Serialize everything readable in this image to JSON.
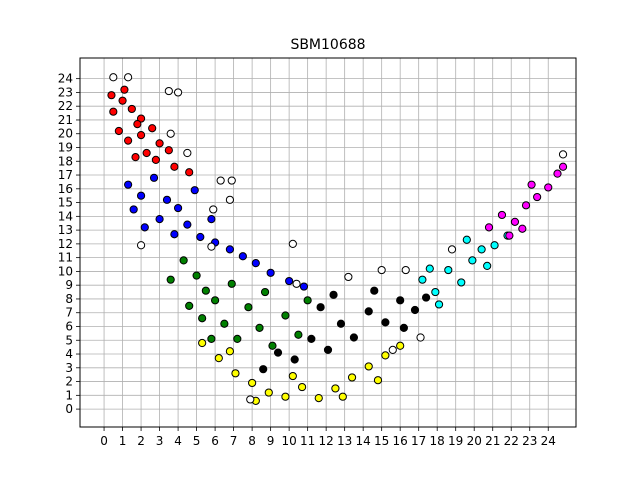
{
  "chart_data": {
    "type": "scatter",
    "title": "SBM10688",
    "xlabel": "",
    "ylabel": "",
    "xlim": [
      -1.3,
      25.5
    ],
    "ylim": [
      -1.3,
      25.5
    ],
    "x_ticks": [
      0,
      1,
      2,
      3,
      4,
      5,
      6,
      7,
      8,
      9,
      10,
      11,
      12,
      13,
      14,
      15,
      16,
      17,
      18,
      19,
      20,
      21,
      22,
      23,
      24
    ],
    "y_ticks": [
      0,
      1,
      2,
      3,
      4,
      5,
      6,
      7,
      8,
      9,
      10,
      11,
      12,
      13,
      14,
      15,
      16,
      17,
      18,
      19,
      20,
      21,
      22,
      23,
      24
    ],
    "grid": true,
    "point_edge_color": "#000000",
    "series": [
      {
        "color": "#ff0000",
        "points": [
          [
            0.5,
            21.6
          ],
          [
            1,
            22.4
          ],
          [
            1.5,
            21.8
          ],
          [
            2,
            21.1
          ],
          [
            0.8,
            20.2
          ],
          [
            1.3,
            19.5
          ],
          [
            2,
            19.9
          ],
          [
            2.6,
            20.4
          ],
          [
            3,
            19.3
          ],
          [
            2.3,
            18.6
          ],
          [
            1.7,
            18.3
          ],
          [
            3.5,
            18.8
          ],
          [
            1.1,
            23.2
          ],
          [
            0.4,
            22.8
          ],
          [
            1.8,
            20.7
          ],
          [
            2.8,
            18.1
          ],
          [
            3.8,
            17.6
          ],
          [
            4.6,
            17.2
          ]
        ]
      },
      {
        "color": "#0000ff",
        "points": [
          [
            1.3,
            16.3
          ],
          [
            2,
            15.5
          ],
          [
            2.7,
            16.8
          ],
          [
            3.4,
            15.2
          ],
          [
            4,
            14.6
          ],
          [
            3,
            13.8
          ],
          [
            2.2,
            13.2
          ],
          [
            3.8,
            12.7
          ],
          [
            4.5,
            13.4
          ],
          [
            5.2,
            12.5
          ],
          [
            6,
            12.1
          ],
          [
            6.8,
            11.6
          ],
          [
            7.5,
            11.1
          ],
          [
            8.2,
            10.6
          ],
          [
            9,
            9.9
          ],
          [
            10,
            9.3
          ],
          [
            10.8,
            8.9
          ],
          [
            1.6,
            14.5
          ],
          [
            4.9,
            15.9
          ],
          [
            5.8,
            13.8
          ]
        ]
      },
      {
        "color": "#008000",
        "points": [
          [
            4.3,
            10.8
          ],
          [
            5,
            9.7
          ],
          [
            5.5,
            8.6
          ],
          [
            4.6,
            7.5
          ],
          [
            5.3,
            6.6
          ],
          [
            6,
            7.9
          ],
          [
            6.5,
            6.2
          ],
          [
            7.2,
            5.1
          ],
          [
            6.9,
            9.1
          ],
          [
            7.8,
            7.4
          ],
          [
            8.4,
            5.9
          ],
          [
            9.1,
            4.6
          ],
          [
            9.8,
            6.8
          ],
          [
            10.5,
            5.4
          ],
          [
            11,
            7.9
          ],
          [
            3.6,
            9.4
          ],
          [
            5.8,
            5.1
          ],
          [
            8.7,
            8.5
          ]
        ]
      },
      {
        "color": "#000000",
        "points": [
          [
            8.6,
            2.9
          ],
          [
            9.4,
            4.1
          ],
          [
            10.3,
            3.6
          ],
          [
            11.2,
            5.1
          ],
          [
            12.1,
            4.3
          ],
          [
            12.8,
            6.2
          ],
          [
            13.5,
            5.2
          ],
          [
            14.3,
            7.1
          ],
          [
            15.2,
            6.3
          ],
          [
            16,
            7.9
          ],
          [
            16.8,
            7.2
          ],
          [
            17.4,
            8.1
          ],
          [
            12.4,
            8.3
          ],
          [
            14.6,
            8.6
          ],
          [
            11.7,
            7.4
          ],
          [
            16.2,
            5.9
          ]
        ]
      },
      {
        "color": "#ffff00",
        "points": [
          [
            5.3,
            4.8
          ],
          [
            6.2,
            3.7
          ],
          [
            7.1,
            2.6
          ],
          [
            8,
            1.9
          ],
          [
            8.9,
            1.2
          ],
          [
            9.8,
            0.9
          ],
          [
            10.7,
            1.6
          ],
          [
            11.6,
            0.8
          ],
          [
            12.5,
            1.5
          ],
          [
            13.4,
            2.3
          ],
          [
            14.3,
            3.1
          ],
          [
            15.2,
            3.9
          ],
          [
            16,
            4.6
          ],
          [
            8.2,
            0.6
          ],
          [
            10.2,
            2.4
          ],
          [
            12.9,
            0.9
          ],
          [
            6.8,
            4.2
          ],
          [
            14.8,
            2.1
          ]
        ]
      },
      {
        "color": "#00ffff",
        "points": [
          [
            17.2,
            9.4
          ],
          [
            17.9,
            8.5
          ],
          [
            18.6,
            10.1
          ],
          [
            19.3,
            9.2
          ],
          [
            19.9,
            10.8
          ],
          [
            20.4,
            11.6
          ],
          [
            21.1,
            11.9
          ],
          [
            21.8,
            12.6
          ],
          [
            18.1,
            7.6
          ],
          [
            19.6,
            12.3
          ],
          [
            20.7,
            10.4
          ],
          [
            17.6,
            10.2
          ]
        ]
      },
      {
        "color": "#ff00ff",
        "points": [
          [
            20.8,
            13.2
          ],
          [
            21.5,
            14.1
          ],
          [
            22.2,
            13.6
          ],
          [
            22.8,
            14.8
          ],
          [
            23.4,
            15.4
          ],
          [
            24,
            16.1
          ],
          [
            24.5,
            17.1
          ],
          [
            21.9,
            12.6
          ],
          [
            23.1,
            16.3
          ],
          [
            24.8,
            17.6
          ],
          [
            22.6,
            13.1
          ]
        ]
      },
      {
        "color": "#ffffff",
        "points": [
          [
            0.5,
            24.1
          ],
          [
            1.3,
            24.1
          ],
          [
            3.5,
            23.1
          ],
          [
            4,
            23
          ],
          [
            3.6,
            20
          ],
          [
            4.5,
            18.6
          ],
          [
            6.3,
            16.6
          ],
          [
            6.9,
            16.6
          ],
          [
            5.9,
            14.5
          ],
          [
            6.8,
            15.2
          ],
          [
            2,
            11.9
          ],
          [
            5.8,
            11.8
          ],
          [
            10.2,
            12
          ],
          [
            10.4,
            9.1
          ],
          [
            13.2,
            9.6
          ],
          [
            15,
            10.1
          ],
          [
            16.3,
            10.1
          ],
          [
            18.8,
            11.6
          ],
          [
            24.8,
            18.5
          ],
          [
            7.9,
            0.7
          ],
          [
            15.6,
            4.3
          ],
          [
            17.1,
            5.2
          ]
        ]
      }
    ]
  }
}
